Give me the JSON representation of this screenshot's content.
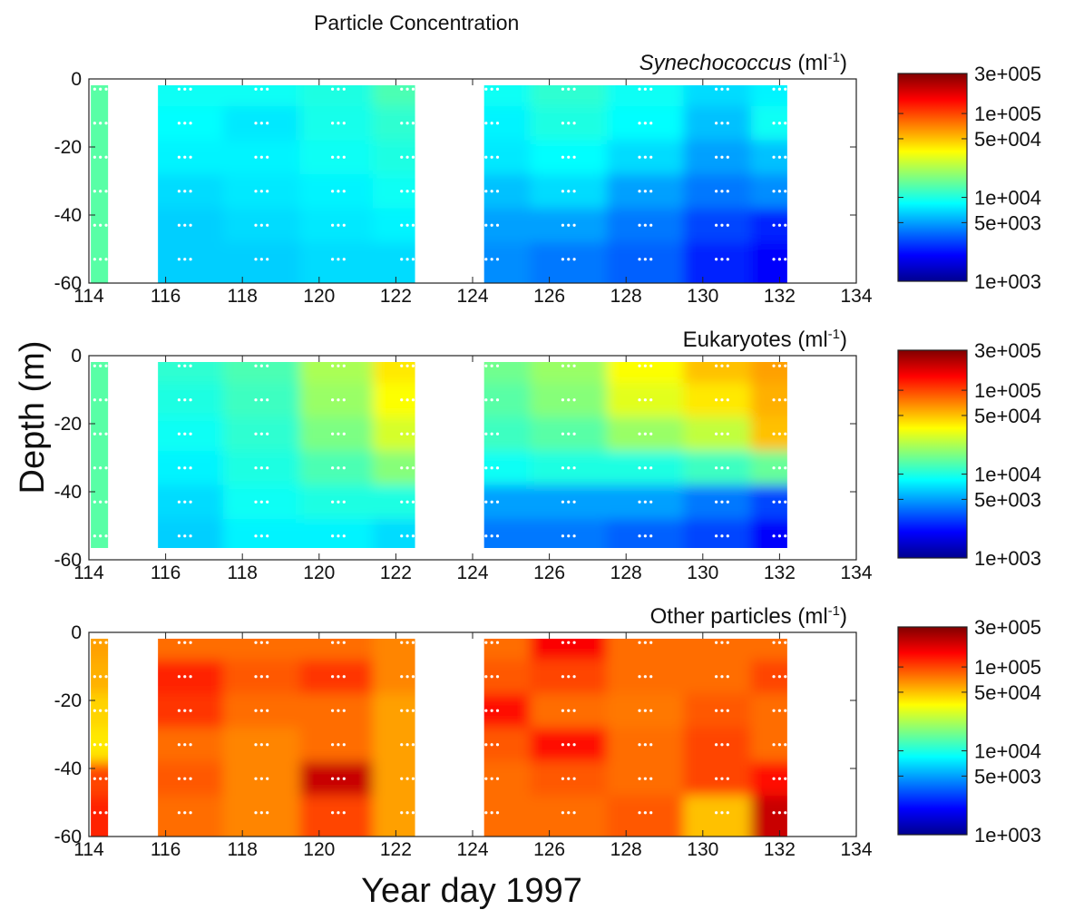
{
  "chart_data": {
    "type": "heatmap",
    "title": "Particle Concentration",
    "xlabel": "Year day 1997",
    "ylabel": "Depth (m)",
    "xlim": [
      114,
      134
    ],
    "ylim": [
      -60,
      0
    ],
    "x_ticks": [
      "114",
      "116",
      "118",
      "120",
      "122",
      "124",
      "126",
      "128",
      "130",
      "132",
      "134"
    ],
    "y_ticks": [
      "0",
      "-20",
      "-40",
      "-60"
    ],
    "colorbar": {
      "scale": "log",
      "range": [
        1000,
        300000
      ],
      "tick_labels": [
        "3e+005",
        "1e+005",
        "5e+004",
        "1e+004",
        "5e+003",
        "1e+003"
      ],
      "tick_values": [
        300000,
        100000,
        50000,
        10000,
        5000,
        1000
      ],
      "colormap": "jet"
    },
    "data_gaps": [
      [
        114.5,
        115.8
      ],
      [
        122.5,
        124.3
      ]
    ],
    "panels": [
      {
        "title_italic": "Synechococcus",
        "title_rest": " (ml",
        "title_sup": "-1",
        "title_close": ")",
        "depths": [
          -3,
          -13,
          -23,
          -33,
          -43,
          -53
        ],
        "days": [
          114.3,
          116.5,
          118.5,
          120.5,
          122.3,
          124.5,
          126.5,
          128.5,
          130.5,
          132
        ],
        "values": [
          [
            14000,
            9000,
            9000,
            10000,
            13000,
            9000,
            11000,
            9000,
            7000,
            8000
          ],
          [
            14000,
            8500,
            7500,
            9500,
            11000,
            8000,
            10000,
            8500,
            6000,
            9000
          ],
          [
            14000,
            8000,
            8000,
            9000,
            10000,
            7500,
            8500,
            7000,
            5000,
            6000
          ],
          [
            14000,
            7000,
            7500,
            8000,
            9000,
            6000,
            7000,
            5000,
            4000,
            4500
          ],
          [
            14000,
            6500,
            7000,
            7500,
            8000,
            5000,
            5000,
            4000,
            3000,
            2500
          ],
          [
            14000,
            6500,
            6500,
            7000,
            7000,
            4500,
            4000,
            3500,
            2500,
            2000
          ]
        ]
      },
      {
        "title_italic": "",
        "title_rest": "Eukaryotes (ml",
        "title_sup": "-1",
        "title_close": ")",
        "depths": [
          -3,
          -13,
          -23,
          -33,
          -43,
          -53
        ],
        "days": [
          114.3,
          116.5,
          118.5,
          120.5,
          122.3,
          124.5,
          126.5,
          128.5,
          130.5,
          132
        ],
        "values": [
          [
            14000,
            11000,
            13000,
            22000,
            40000,
            16000,
            20000,
            35000,
            50000,
            60000
          ],
          [
            14000,
            10000,
            12000,
            20000,
            35000,
            14000,
            18000,
            30000,
            40000,
            55000
          ],
          [
            14000,
            9000,
            11000,
            17000,
            28000,
            12000,
            14000,
            20000,
            25000,
            50000
          ],
          [
            14000,
            8000,
            10000,
            13000,
            18000,
            9000,
            10000,
            10000,
            12000,
            15000
          ],
          [
            14000,
            7000,
            9000,
            10000,
            10000,
            5000,
            5000,
            5000,
            4000,
            3000
          ],
          [
            14000,
            6500,
            8000,
            8000,
            7000,
            4000,
            4000,
            3500,
            3000,
            2000
          ]
        ]
      },
      {
        "title_italic": "",
        "title_rest": "Other particles (ml",
        "title_sup": "-1",
        "title_close": ")",
        "depths": [
          -3,
          -13,
          -23,
          -33,
          -43,
          -53
        ],
        "days": [
          114.3,
          116.5,
          118.5,
          120.5,
          122.3,
          124.5,
          126.5,
          128.5,
          130.5,
          132
        ],
        "values": [
          [
            60000,
            80000,
            80000,
            80000,
            70000,
            80000,
            150000,
            80000,
            80000,
            80000
          ],
          [
            55000,
            120000,
            90000,
            110000,
            70000,
            90000,
            100000,
            80000,
            80000,
            100000
          ],
          [
            45000,
            110000,
            80000,
            80000,
            60000,
            140000,
            80000,
            75000,
            90000,
            80000
          ],
          [
            40000,
            80000,
            70000,
            80000,
            60000,
            90000,
            140000,
            80000,
            100000,
            80000
          ],
          [
            100000,
            90000,
            70000,
            200000,
            60000,
            80000,
            90000,
            80000,
            100000,
            140000
          ],
          [
            120000,
            80000,
            70000,
            100000,
            60000,
            80000,
            80000,
            90000,
            50000,
            200000
          ]
        ]
      }
    ]
  }
}
